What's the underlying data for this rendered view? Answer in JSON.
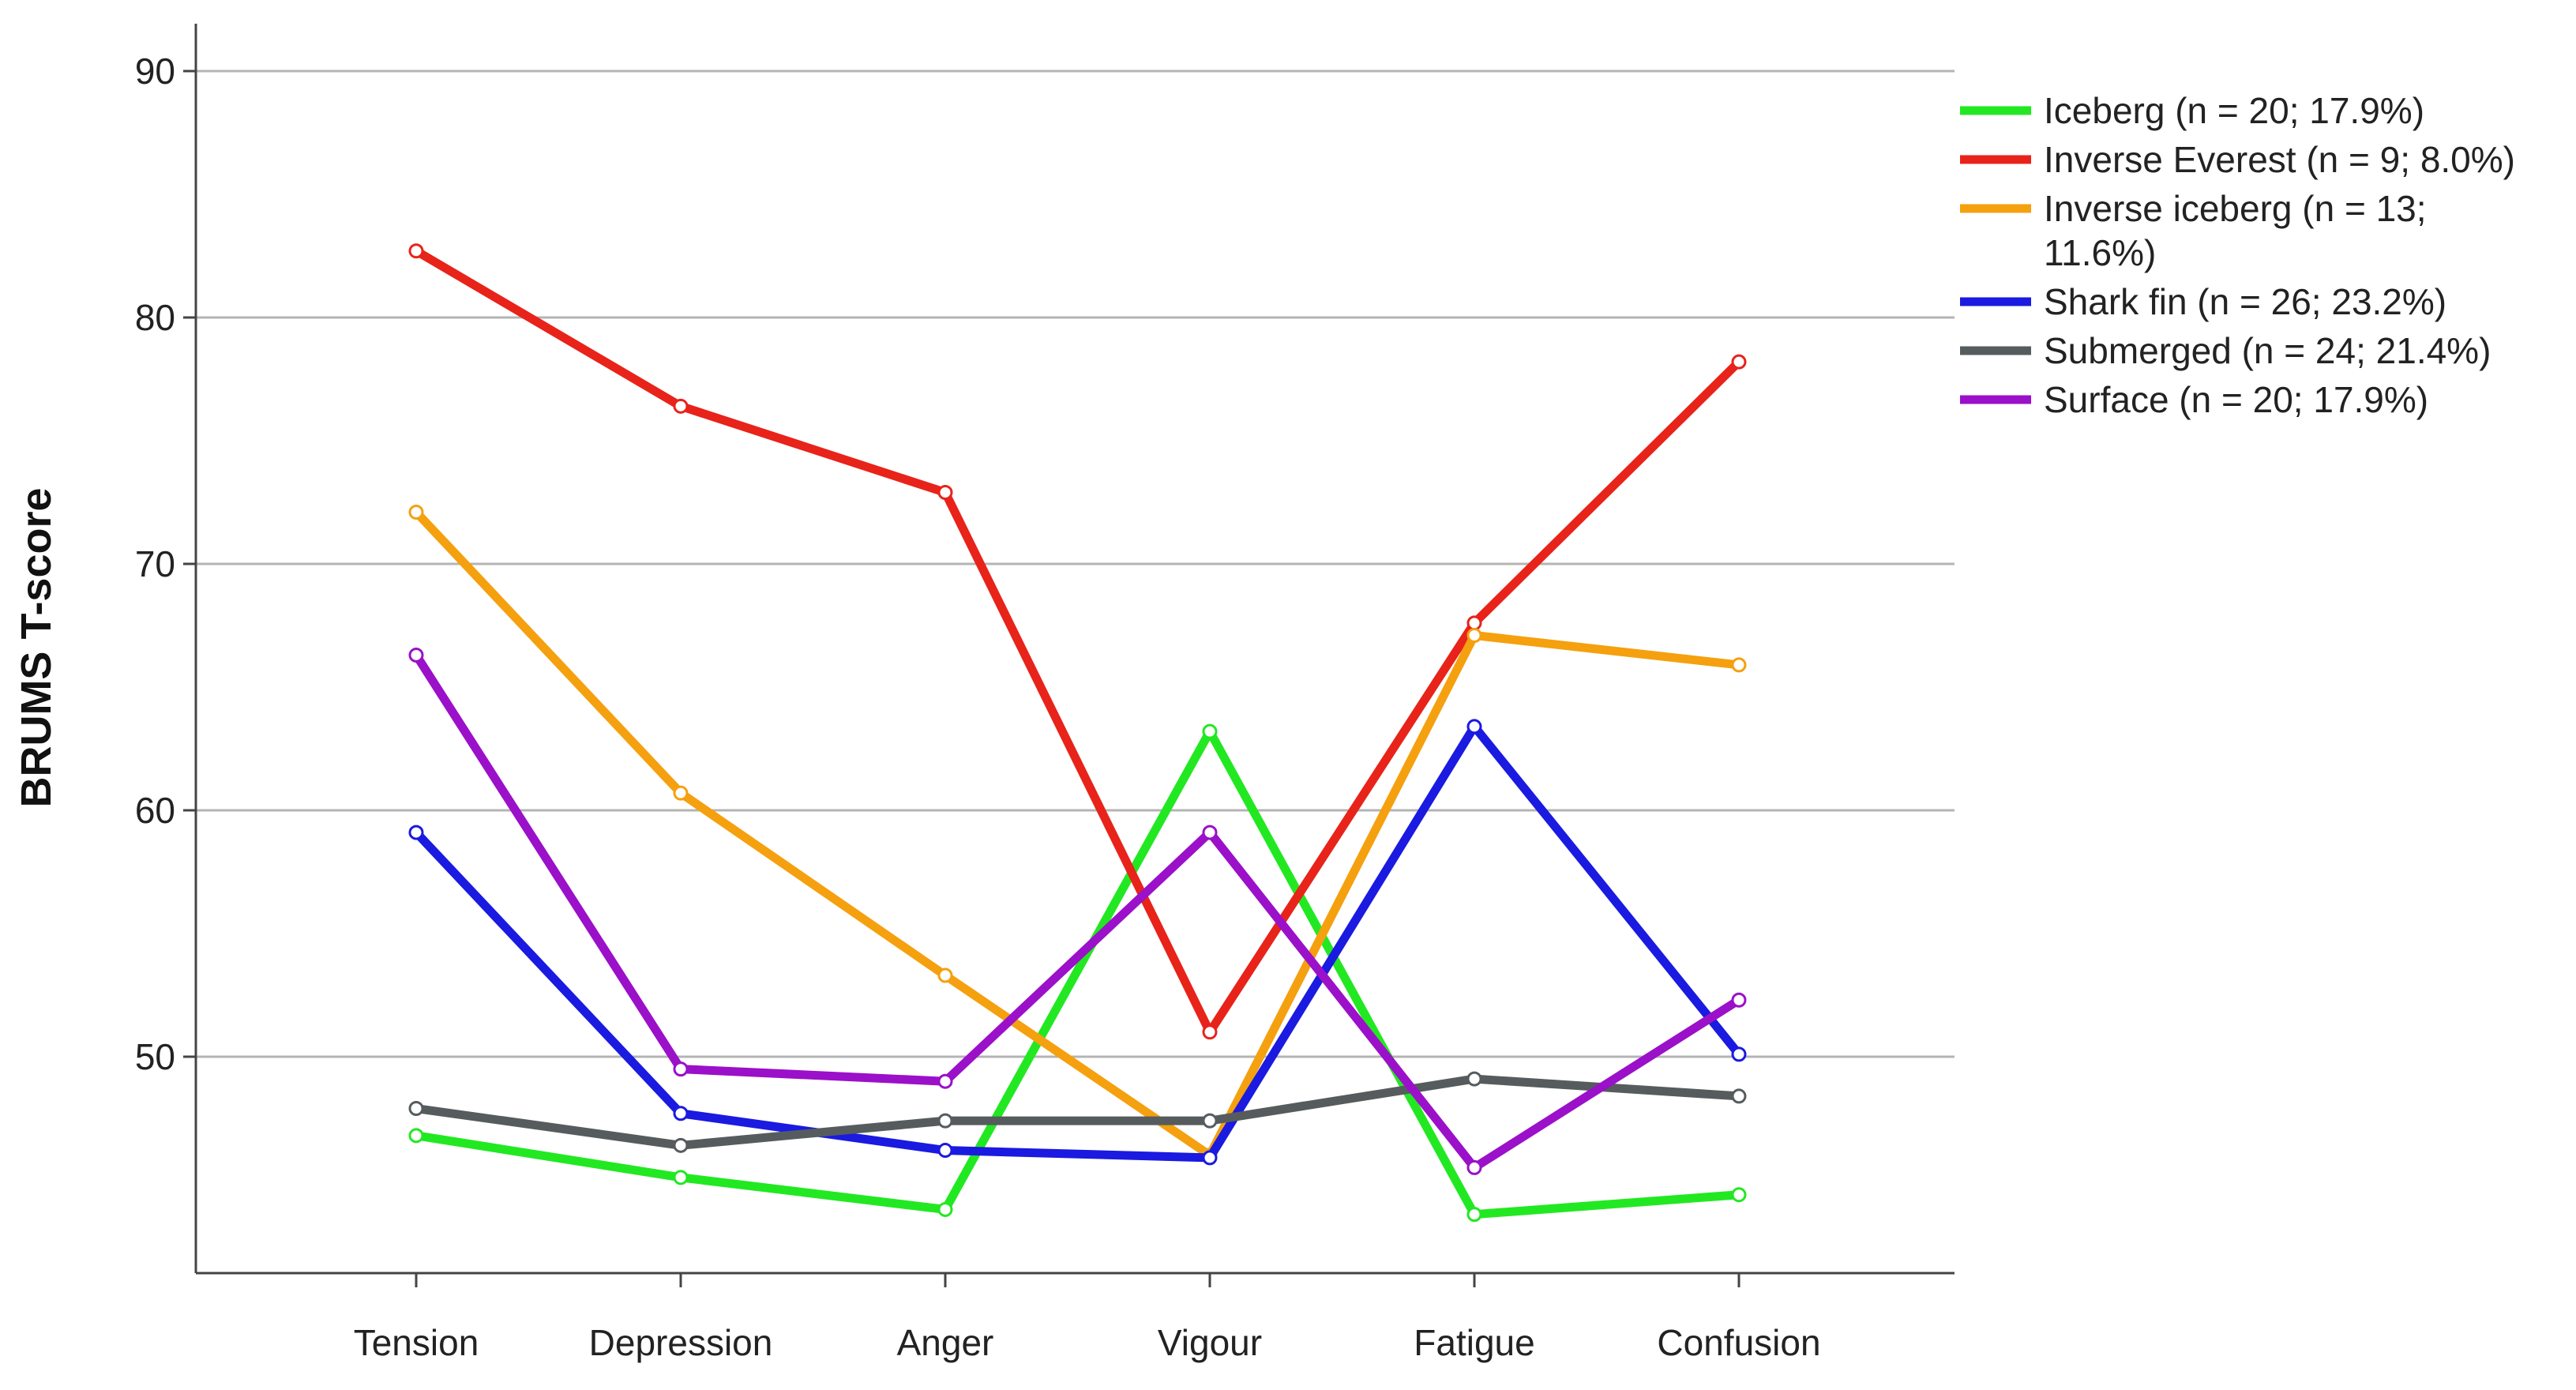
{
  "chart_data": {
    "type": "line",
    "title": "",
    "xlabel": "",
    "ylabel": "BRUMS T-score",
    "categories": [
      "Tension",
      "Depression",
      "Anger",
      "Vigour",
      "Fatigue",
      "Confusion"
    ],
    "ylim": [
      38,
      92
    ],
    "yticks": [
      50,
      60,
      70,
      80,
      90
    ],
    "grid": "horizontal",
    "legend_position": "top-right",
    "series": [
      {
        "name": "Iceberg (n = 20; 17.9%)",
        "color": "#22e822",
        "values": [
          46.8,
          45.1,
          43.8,
          63.2,
          43.6,
          44.4
        ]
      },
      {
        "name": "Inverse Everest (n = 9; 8.0%)",
        "color": "#e8231a",
        "values": [
          82.7,
          76.4,
          72.9,
          51.0,
          67.6,
          78.2
        ]
      },
      {
        "name": "Inverse iceberg (n = 13; 11.6%)",
        "legend_lines": [
          "Inverse iceberg (n = 13;",
          "11.6%)"
        ],
        "color": "#f5a00f",
        "values": [
          72.1,
          60.7,
          53.3,
          46.0,
          67.1,
          65.9
        ]
      },
      {
        "name": "Shark fin (n = 26; 23.2%)",
        "color": "#1a1ae0",
        "values": [
          59.1,
          47.7,
          46.2,
          45.9,
          63.4,
          50.1
        ]
      },
      {
        "name": "Submerged (n = 24; 21.4%)",
        "color": "#565c5e",
        "values": [
          47.9,
          46.4,
          47.4,
          47.4,
          49.1,
          48.4
        ]
      },
      {
        "name": "Surface (n = 20; 17.9%)",
        "color": "#9b10c9",
        "values": [
          66.3,
          49.5,
          49.0,
          59.1,
          45.5,
          52.3
        ]
      }
    ]
  }
}
